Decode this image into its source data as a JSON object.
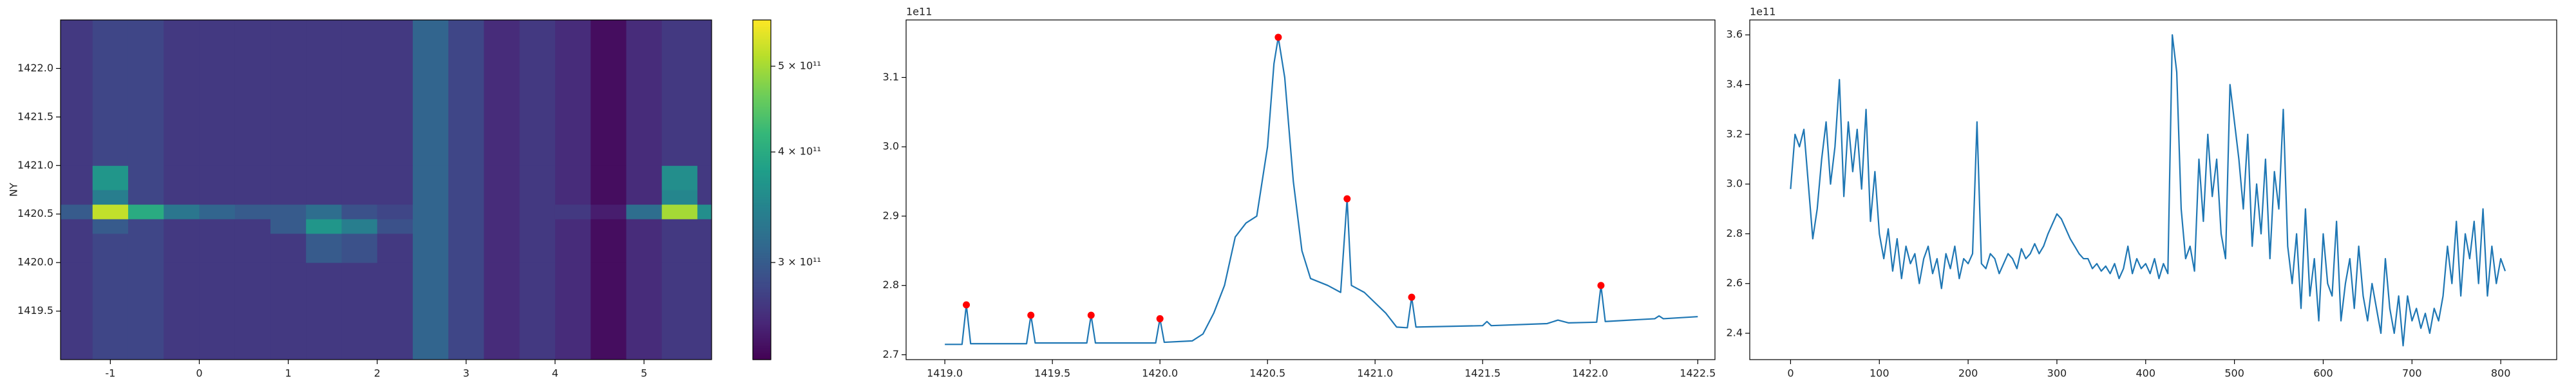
{
  "chart_data": [
    {
      "type": "heatmap",
      "ylabel": "NY",
      "colormap": "viridis",
      "x_edges": [
        -1.6,
        -1.2,
        -0.8,
        -0.4,
        0,
        0.4,
        0.8,
        1.2,
        1.6,
        2.0,
        2.4,
        2.8,
        3.2,
        3.6,
        4.0,
        4.4,
        4.8,
        5.2,
        5.6,
        5.8
      ],
      "y_edges": [
        1419.0,
        1420.0,
        1420.3,
        1420.45,
        1420.6,
        1420.75,
        1421.0,
        1422.5
      ],
      "values": [
        [
          270000000000.0,
          280000000000.0,
          280000000000.0,
          270000000000.0,
          270000000000.0,
          270000000000.0,
          270000000000.0,
          270000000000.0,
          270000000000.0,
          270000000000.0,
          310000000000.0,
          280000000000.0,
          260000000000.0,
          270000000000.0,
          260000000000.0,
          240000000000.0,
          260000000000.0,
          270000000000.0,
          270000000000.0
        ],
        [
          270000000000.0,
          280000000000.0,
          280000000000.0,
          270000000000.0,
          270000000000.0,
          270000000000.0,
          270000000000.0,
          300000000000.0,
          290000000000.0,
          270000000000.0,
          310000000000.0,
          280000000000.0,
          260000000000.0,
          270000000000.0,
          260000000000.0,
          240000000000.0,
          260000000000.0,
          270000000000.0,
          270000000000.0
        ],
        [
          270000000000.0,
          300000000000.0,
          280000000000.0,
          270000000000.0,
          270000000000.0,
          270000000000.0,
          300000000000.0,
          370000000000.0,
          340000000000.0,
          290000000000.0,
          310000000000.0,
          280000000000.0,
          260000000000.0,
          270000000000.0,
          260000000000.0,
          240000000000.0,
          260000000000.0,
          270000000000.0,
          270000000000.0
        ],
        [
          300000000000.0,
          520000000000.0,
          400000000000.0,
          330000000000.0,
          310000000000.0,
          300000000000.0,
          300000000000.0,
          320000000000.0,
          290000000000.0,
          280000000000.0,
          310000000000.0,
          280000000000.0,
          260000000000.0,
          270000000000.0,
          270000000000.0,
          250000000000.0,
          320000000000.0,
          500000000000.0,
          360000000000.0
        ],
        [
          270000000000.0,
          340000000000.0,
          280000000000.0,
          270000000000.0,
          270000000000.0,
          270000000000.0,
          270000000000.0,
          270000000000.0,
          270000000000.0,
          270000000000.0,
          310000000000.0,
          280000000000.0,
          260000000000.0,
          270000000000.0,
          260000000000.0,
          240000000000.0,
          260000000000.0,
          350000000000.0,
          270000000000.0
        ],
        [
          270000000000.0,
          370000000000.0,
          280000000000.0,
          270000000000.0,
          270000000000.0,
          270000000000.0,
          270000000000.0,
          270000000000.0,
          270000000000.0,
          270000000000.0,
          310000000000.0,
          280000000000.0,
          260000000000.0,
          270000000000.0,
          260000000000.0,
          240000000000.0,
          260000000000.0,
          360000000000.0,
          270000000000.0
        ],
        [
          270000000000.0,
          280000000000.0,
          280000000000.0,
          270000000000.0,
          270000000000.0,
          270000000000.0,
          270000000000.0,
          270000000000.0,
          270000000000.0,
          270000000000.0,
          310000000000.0,
          280000000000.0,
          260000000000.0,
          270000000000.0,
          260000000000.0,
          240000000000.0,
          260000000000.0,
          270000000000.0,
          270000000000.0
        ]
      ],
      "xlim": [
        -1.56,
        5.76
      ],
      "ylim": [
        1419.0,
        1422.5
      ],
      "xticks": [
        -1,
        0,
        1,
        2,
        3,
        4,
        5
      ],
      "yticks": [
        1419.5,
        {
          "value": 1420.0,
          "label": "1420.0"
        },
        1420.5,
        {
          "value": 1421.0,
          "label": "1421.0"
        },
        1421.5,
        {
          "value": 1422.0,
          "label": "1422.0"
        }
      ],
      "colorbar": {
        "scale": "log",
        "lim": [
          233000000000.0,
          564000000000.0
        ],
        "ticks": [
          {
            "value": 300000000000.0,
            "label": "3 × 10¹¹"
          },
          {
            "value": 400000000000.0,
            "label": "4 × 10¹¹"
          },
          {
            "value": 500000000000.0,
            "label": "5 × 10¹¹"
          }
        ]
      }
    },
    {
      "type": "line",
      "offset_text": "1e11",
      "xlim": [
        1418.82,
        1422.58
      ],
      "ylim": [
        2.693,
        3.183
      ],
      "xticks": [
        {
          "value": 1419.0,
          "label": "1419.0"
        },
        1419.5,
        {
          "value": 1420.0,
          "label": "1420.0"
        },
        1420.5,
        {
          "value": 1421.0,
          "label": "1421.0"
        },
        1421.5,
        {
          "value": 1422.0,
          "label": "1422.0"
        },
        1422.5
      ],
      "yticks": [
        2.7,
        2.8,
        2.9,
        {
          "value": 3.0,
          "label": "3.0"
        },
        3.1
      ],
      "series": [
        {
          "color": "#1f77b4",
          "x": [
            1419.0,
            1419.08,
            1419.1,
            1419.12,
            1419.38,
            1419.4,
            1419.42,
            1419.66,
            1419.68,
            1419.7,
            1419.98,
            1420.0,
            1420.02,
            1420.15,
            1420.2,
            1420.25,
            1420.3,
            1420.35,
            1420.4,
            1420.45,
            1420.5,
            1420.53,
            1420.55,
            1420.58,
            1420.62,
            1420.66,
            1420.7,
            1420.78,
            1420.84,
            1420.87,
            1420.89,
            1420.95,
            1421.05,
            1421.1,
            1421.15,
            1421.17,
            1421.19,
            1421.5,
            1421.52,
            1421.54,
            1421.8,
            1421.85,
            1421.9,
            1422.03,
            1422.05,
            1422.07,
            1422.3,
            1422.32,
            1422.34,
            1422.5
          ],
          "values": [
            2.715,
            2.715,
            2.772,
            2.716,
            2.716,
            2.757,
            2.717,
            2.717,
            2.757,
            2.717,
            2.717,
            2.752,
            2.718,
            2.72,
            2.73,
            2.76,
            2.8,
            2.87,
            2.89,
            2.9,
            3.0,
            3.12,
            3.158,
            3.1,
            2.95,
            2.85,
            2.81,
            2.8,
            2.79,
            2.925,
            2.8,
            2.79,
            2.76,
            2.74,
            2.739,
            2.783,
            2.74,
            2.742,
            2.748,
            2.742,
            2.745,
            2.75,
            2.746,
            2.747,
            2.8,
            2.748,
            2.752,
            2.756,
            2.752,
            2.755
          ]
        },
        {
          "color": "red",
          "marker": "o",
          "x": [
            1419.1,
            1419.4,
            1419.68,
            1420.0,
            1420.55,
            1420.87,
            1421.17,
            1422.05
          ],
          "values": [
            2.772,
            2.757,
            2.757,
            2.752,
            3.158,
            2.925,
            2.783,
            2.8
          ]
        }
      ]
    },
    {
      "type": "line",
      "offset_text": "1e11",
      "xlim": [
        -46,
        863
      ],
      "ylim": [
        2.294,
        3.66
      ],
      "xticks": [
        0,
        100,
        200,
        300,
        400,
        500,
        600,
        700,
        800
      ],
      "yticks": [
        2.4,
        2.6,
        2.8,
        {
          "value": 3.0,
          "label": "3.0"
        },
        3.2,
        3.4,
        3.6
      ],
      "series": [
        {
          "color": "#1f77b4",
          "x": [
            0,
            5,
            10,
            15,
            20,
            25,
            30,
            35,
            40,
            45,
            50,
            55,
            60,
            65,
            70,
            75,
            80,
            85,
            90,
            95,
            100,
            105,
            110,
            115,
            120,
            125,
            130,
            135,
            140,
            145,
            150,
            155,
            160,
            165,
            170,
            175,
            180,
            185,
            190,
            195,
            200,
            205,
            210,
            215,
            220,
            225,
            230,
            235,
            240,
            245,
            250,
            255,
            260,
            265,
            270,
            275,
            280,
            285,
            290,
            295,
            300,
            305,
            310,
            315,
            320,
            325,
            330,
            335,
            340,
            345,
            350,
            355,
            360,
            365,
            370,
            375,
            380,
            385,
            390,
            395,
            400,
            405,
            410,
            415,
            420,
            425,
            430,
            435,
            440,
            445,
            450,
            455,
            460,
            465,
            470,
            475,
            480,
            485,
            490,
            495,
            500,
            505,
            510,
            515,
            520,
            525,
            530,
            535,
            540,
            545,
            550,
            555,
            560,
            565,
            570,
            575,
            580,
            585,
            590,
            595,
            600,
            605,
            610,
            615,
            620,
            625,
            630,
            635,
            640,
            645,
            650,
            655,
            660,
            665,
            670,
            675,
            680,
            685,
            690,
            695,
            700,
            705,
            710,
            715,
            720,
            725,
            730,
            735,
            740,
            745,
            750,
            755,
            760,
            765,
            770,
            775,
            780,
            785,
            790,
            795,
            800,
            805
          ],
          "values": [
            2.98,
            3.2,
            3.15,
            3.22,
            3.0,
            2.78,
            2.9,
            3.1,
            3.25,
            3.0,
            3.15,
            3.42,
            2.95,
            3.25,
            3.05,
            3.22,
            2.98,
            3.3,
            2.85,
            3.05,
            2.8,
            2.7,
            2.82,
            2.65,
            2.78,
            2.62,
            2.75,
            2.68,
            2.72,
            2.6,
            2.7,
            2.75,
            2.64,
            2.7,
            2.58,
            2.72,
            2.66,
            2.75,
            2.62,
            2.7,
            2.68,
            2.72,
            3.25,
            2.68,
            2.66,
            2.72,
            2.7,
            2.64,
            2.68,
            2.72,
            2.7,
            2.66,
            2.74,
            2.7,
            2.72,
            2.76,
            2.72,
            2.75,
            2.8,
            2.84,
            2.88,
            2.86,
            2.82,
            2.78,
            2.75,
            2.72,
            2.7,
            2.7,
            2.66,
            2.68,
            2.65,
            2.67,
            2.64,
            2.68,
            2.62,
            2.66,
            2.75,
            2.64,
            2.7,
            2.66,
            2.68,
            2.64,
            2.7,
            2.62,
            2.68,
            2.64,
            3.6,
            3.45,
            2.9,
            2.7,
            2.75,
            2.65,
            3.1,
            2.85,
            3.2,
            2.95,
            3.1,
            2.8,
            2.7,
            3.4,
            3.25,
            3.1,
            2.9,
            3.2,
            2.75,
            3.0,
            2.8,
            3.1,
            2.7,
            3.05,
            2.9,
            3.3,
            2.75,
            2.6,
            2.8,
            2.5,
            2.9,
            2.55,
            2.7,
            2.45,
            2.8,
            2.6,
            2.55,
            2.85,
            2.45,
            2.6,
            2.7,
            2.5,
            2.75,
            2.55,
            2.45,
            2.6,
            2.5,
            2.4,
            2.7,
            2.5,
            2.4,
            2.55,
            2.35,
            2.55,
            2.45,
            2.5,
            2.42,
            2.48,
            2.4,
            2.5,
            2.45,
            2.55,
            2.75,
            2.6,
            2.85,
            2.55,
            2.8,
            2.7,
            2.85,
            2.6,
            2.9,
            2.55,
            2.75,
            2.6,
            2.7,
            2.65
          ]
        }
      ]
    }
  ]
}
